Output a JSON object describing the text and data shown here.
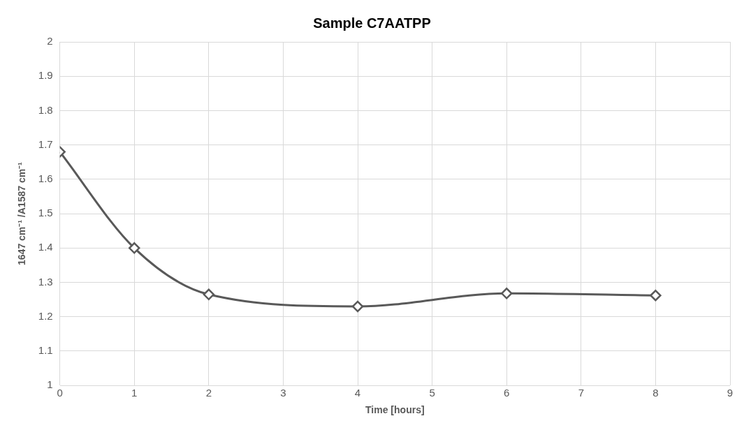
{
  "chart_data": {
    "type": "line",
    "title": "Sample C7AATPP",
    "xlabel": "Time [hours]",
    "ylabel": "1647 cm⁻¹ /A1587 cm⁻¹",
    "x": [
      0,
      1,
      2,
      4,
      6,
      8
    ],
    "series": [
      {
        "color": "#595959",
        "values": [
          1.68,
          1.4,
          1.265,
          1.23,
          1.268,
          1.262
        ]
      }
    ],
    "xlim": [
      0,
      9
    ],
    "xticks": [
      0,
      1,
      2,
      3,
      4,
      5,
      6,
      7,
      8,
      9
    ],
    "ylim": [
      1,
      2
    ],
    "yticks": [
      1,
      1.1,
      1.2,
      1.3,
      1.4,
      1.5,
      1.6,
      1.7,
      1.8,
      1.9,
      2
    ],
    "grid": true,
    "legend": false,
    "marker": "diamond",
    "line_style": "solid"
  }
}
